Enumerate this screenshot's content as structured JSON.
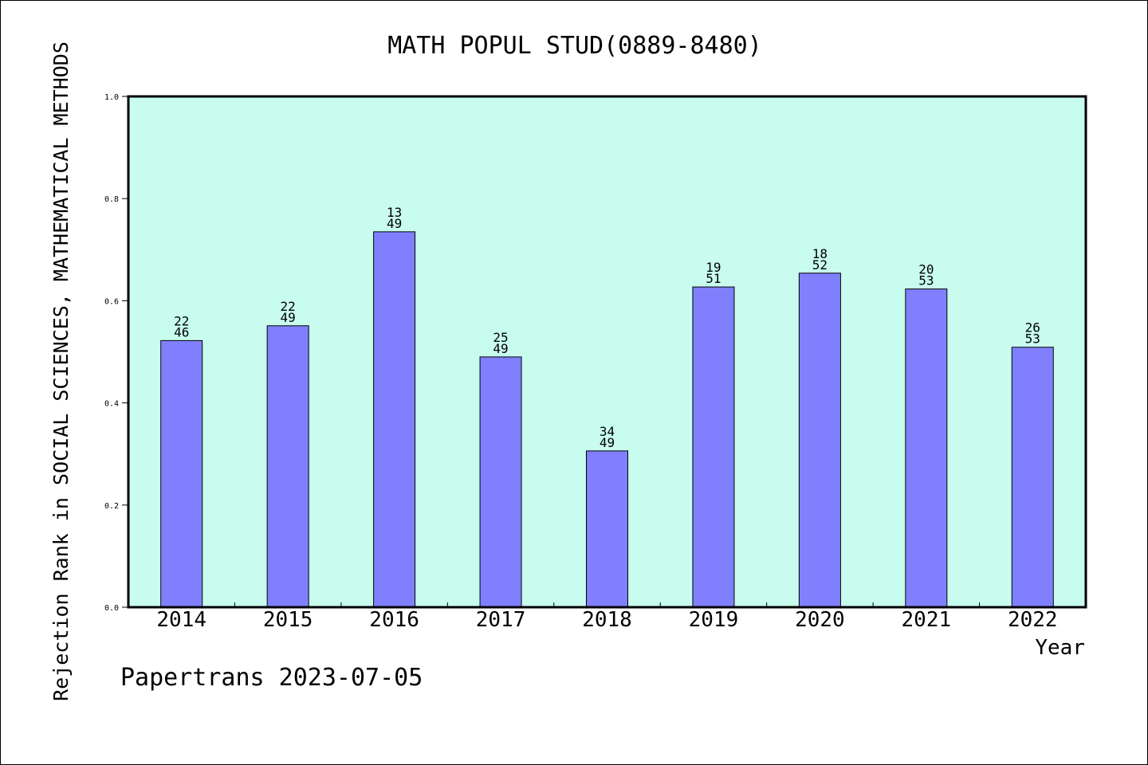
{
  "chart_data": {
    "type": "bar",
    "title": "MATH POPUL STUD(0889-8480)",
    "xlabel": "Year",
    "ylabel": "Rejection Rank in SOCIAL SCIENCES, MATHEMATICAL METHODS",
    "categories": [
      "2014",
      "2015",
      "2016",
      "2017",
      "2018",
      "2019",
      "2020",
      "2021",
      "2022"
    ],
    "values": [
      0.522,
      0.551,
      0.735,
      0.49,
      0.306,
      0.627,
      0.654,
      0.623,
      0.509
    ],
    "data_labels": [
      [
        "22",
        "46"
      ],
      [
        "22",
        "49"
      ],
      [
        "13",
        "49"
      ],
      [
        "25",
        "49"
      ],
      [
        "34",
        "49"
      ],
      [
        "19",
        "51"
      ],
      [
        "18",
        "52"
      ],
      [
        "20",
        "53"
      ],
      [
        "26",
        "53"
      ]
    ],
    "ylim": [
      0,
      1.0
    ],
    "yticks": [
      "0.0",
      "0.2",
      "0.4",
      "0.6",
      "0.8",
      "1.0"
    ],
    "grid": false,
    "colors": {
      "bar": "#8080ff",
      "plot_background": "#c8fcee"
    }
  },
  "footer": {
    "note": "Papertrans 2023-07-05"
  }
}
